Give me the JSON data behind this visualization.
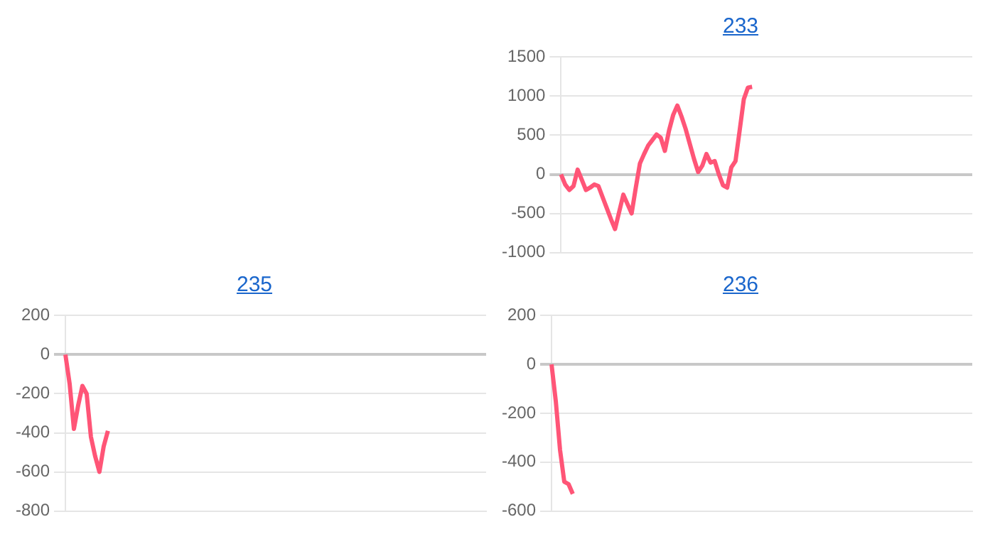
{
  "chart_data": [
    {
      "type": "line",
      "title": "233",
      "categories": [
        null,
        null,
        null,
        null,
        null,
        null,
        null,
        null,
        null,
        null,
        null,
        null,
        null,
        null,
        null,
        null,
        null,
        null,
        null,
        null,
        null,
        null,
        null,
        null,
        null,
        null,
        null,
        null,
        null,
        null,
        null,
        null,
        null,
        null,
        null,
        null,
        null,
        null,
        null,
        null,
        null,
        null,
        null,
        null,
        null,
        null,
        null,
        null,
        null,
        null,
        null,
        null,
        null,
        null,
        null,
        null,
        null,
        null,
        null,
        null,
        null,
        null,
        null,
        null,
        null,
        null,
        null,
        null,
        null,
        null,
        null,
        null,
        null,
        null,
        null,
        null,
        null,
        null,
        null,
        null,
        null,
        null,
        null,
        null,
        null,
        null,
        null,
        null,
        null,
        null,
        null,
        null,
        null,
        null,
        null,
        null,
        null,
        null,
        null,
        null
      ],
      "series": [
        {
          "color": "#ff5577",
          "values": [
            0,
            -130,
            -200,
            -150,
            60,
            -70,
            -200,
            -170,
            -130,
            -150,
            -290,
            -430,
            -570,
            -700,
            -480,
            -260,
            -380,
            -500,
            -170,
            140,
            260,
            370,
            440,
            510,
            470,
            300,
            560,
            760,
            880,
            740,
            580,
            390,
            200,
            30,
            110,
            260,
            150,
            170,
            0,
            -140,
            -170,
            90,
            170,
            560,
            960,
            1110,
            1120,
            null,
            null,
            null,
            null,
            null,
            null,
            null,
            null,
            null,
            null,
            null,
            null,
            null,
            null,
            null,
            null,
            null,
            null,
            null,
            null,
            null,
            null,
            null,
            null,
            null,
            null,
            null,
            null,
            null,
            null,
            null,
            null,
            null,
            null,
            null,
            null,
            null,
            null,
            null,
            null,
            null,
            null,
            null,
            null,
            null,
            null,
            null,
            null,
            null,
            null,
            null,
            null,
            null
          ]
        }
      ],
      "ylim": [
        -1000,
        1500
      ],
      "yticks": [
        -1000,
        -500,
        0,
        500,
        1000,
        1500
      ],
      "grid": "y",
      "tick_labels": "y",
      "legend": false,
      "marker": "none",
      "line_style": "solid"
    },
    {
      "type": "line",
      "title": "235",
      "categories": [
        null,
        null,
        null,
        null,
        null,
        null,
        null,
        null,
        null,
        null,
        null,
        null,
        null,
        null,
        null,
        null,
        null,
        null,
        null,
        null,
        null,
        null,
        null,
        null,
        null,
        null,
        null,
        null,
        null,
        null,
        null,
        null,
        null,
        null,
        null,
        null,
        null,
        null,
        null,
        null,
        null,
        null,
        null,
        null,
        null,
        null,
        null,
        null,
        null,
        null,
        null,
        null,
        null,
        null,
        null,
        null,
        null,
        null,
        null,
        null,
        null,
        null,
        null,
        null,
        null,
        null,
        null,
        null,
        null,
        null,
        null,
        null,
        null,
        null,
        null,
        null,
        null,
        null,
        null,
        null,
        null,
        null,
        null,
        null,
        null,
        null,
        null,
        null,
        null,
        null,
        null,
        null,
        null,
        null,
        null,
        null,
        null,
        null,
        null,
        null
      ],
      "series": [
        {
          "color": "#ff5577",
          "values": [
            0,
            -150,
            -380,
            -260,
            -160,
            -200,
            -420,
            -520,
            -600,
            -470,
            -390,
            null,
            null,
            null,
            null,
            null,
            null,
            null,
            null,
            null,
            null,
            null,
            null,
            null,
            null,
            null,
            null,
            null,
            null,
            null,
            null,
            null,
            null,
            null,
            null,
            null,
            null,
            null,
            null,
            null,
            null,
            null,
            null,
            null,
            null,
            null,
            null,
            null,
            null,
            null,
            null,
            null,
            null,
            null,
            null,
            null,
            null,
            null,
            null,
            null,
            null,
            null,
            null,
            null,
            null,
            null,
            null,
            null,
            null,
            null,
            null,
            null,
            null,
            null,
            null,
            null,
            null,
            null,
            null,
            null,
            null,
            null,
            null,
            null,
            null,
            null,
            null,
            null,
            null,
            null,
            null,
            null,
            null,
            null,
            null,
            null,
            null,
            null,
            null,
            null
          ]
        }
      ],
      "ylim": [
        -800,
        200
      ],
      "yticks": [
        -800,
        -600,
        -400,
        -200,
        0,
        200
      ],
      "grid": "y",
      "tick_labels": "y",
      "legend": false,
      "marker": "none",
      "line_style": "solid"
    },
    {
      "type": "line",
      "title": "236",
      "categories": [
        null,
        null,
        null,
        null,
        null,
        null,
        null,
        null,
        null,
        null,
        null,
        null,
        null,
        null,
        null,
        null,
        null,
        null,
        null,
        null,
        null,
        null,
        null,
        null,
        null,
        null,
        null,
        null,
        null,
        null,
        null,
        null,
        null,
        null,
        null,
        null,
        null,
        null,
        null,
        null,
        null,
        null,
        null,
        null,
        null,
        null,
        null,
        null,
        null,
        null,
        null,
        null,
        null,
        null,
        null,
        null,
        null,
        null,
        null,
        null,
        null,
        null,
        null,
        null,
        null,
        null,
        null,
        null,
        null,
        null,
        null,
        null,
        null,
        null,
        null,
        null,
        null,
        null,
        null,
        null,
        null,
        null,
        null,
        null,
        null,
        null,
        null,
        null,
        null,
        null,
        null,
        null,
        null,
        null,
        null,
        null,
        null,
        null,
        null,
        null
      ],
      "series": [
        {
          "color": "#ff5577",
          "values": [
            0,
            -150,
            -350,
            -480,
            -490,
            -530,
            null,
            null,
            null,
            null,
            null,
            null,
            null,
            null,
            null,
            null,
            null,
            null,
            null,
            null,
            null,
            null,
            null,
            null,
            null,
            null,
            null,
            null,
            null,
            null,
            null,
            null,
            null,
            null,
            null,
            null,
            null,
            null,
            null,
            null,
            null,
            null,
            null,
            null,
            null,
            null,
            null,
            null,
            null,
            null,
            null,
            null,
            null,
            null,
            null,
            null,
            null,
            null,
            null,
            null,
            null,
            null,
            null,
            null,
            null,
            null,
            null,
            null,
            null,
            null,
            null,
            null,
            null,
            null,
            null,
            null,
            null,
            null,
            null,
            null,
            null,
            null,
            null,
            null,
            null,
            null,
            null,
            null,
            null,
            null,
            null,
            null,
            null,
            null,
            null,
            null,
            null,
            null,
            null,
            null
          ]
        }
      ],
      "ylim": [
        -600,
        200
      ],
      "yticks": [
        -600,
        -400,
        -200,
        0,
        200
      ],
      "grid": "y",
      "tick_labels": "y",
      "legend": false,
      "marker": "none",
      "line_style": "solid"
    }
  ]
}
